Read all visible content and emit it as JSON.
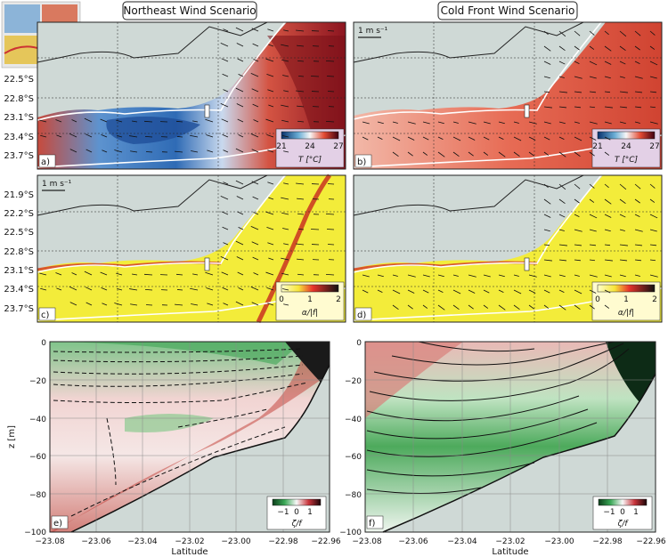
{
  "titles": {
    "left": "Northeast Wind Scenario",
    "right": "Cold Front Wind Scenario"
  },
  "map_panels": {
    "lat_ticks_top": [
      "22.5°S",
      "22.8°S",
      "23.1°S",
      "23.4°S",
      "23.7°S"
    ],
    "lat_ticks_mid": [
      "21.9°S",
      "22.2°S",
      "22.5°S",
      "22.8°S",
      "23.1°S",
      "23.4°S",
      "23.7°S"
    ],
    "scale_label": "1 m s⁻¹",
    "panels": [
      {
        "id": "a",
        "label": "a)",
        "field": "temperature",
        "colorbar": {
          "ticks": [
            "21",
            "24",
            "27"
          ],
          "label": "T [°C]"
        }
      },
      {
        "id": "b",
        "label": "b)",
        "field": "temperature",
        "colorbar": {
          "ticks": [
            "21",
            "24",
            "27"
          ],
          "label": "T [°C]"
        }
      },
      {
        "id": "c",
        "label": "c)",
        "field": "strain",
        "colorbar": {
          "ticks": [
            "0",
            "1",
            "2"
          ],
          "label": "α/|f|"
        }
      },
      {
        "id": "d",
        "label": "d)",
        "field": "strain",
        "colorbar": {
          "ticks": [
            "0",
            "1",
            "2"
          ],
          "label": "α/|f|"
        }
      }
    ]
  },
  "section_panels": {
    "xlabel": "Latitude",
    "ylabel": "z [m]",
    "x_ticks": [
      "−23.08",
      "−23.06",
      "−23.04",
      "−23.02",
      "−23.00",
      "−22.98",
      "−22.96"
    ],
    "y_ticks": [
      "0",
      "−20",
      "−40",
      "−60",
      "−80",
      "−100"
    ],
    "panels": [
      {
        "id": "e",
        "label": "e)",
        "colorbar": {
          "ticks": [
            "−1",
            "0",
            "1"
          ],
          "label": "ζ/f"
        }
      },
      {
        "id": "f",
        "label": "f)",
        "colorbar": {
          "ticks": [
            "−1",
            "0",
            "1"
          ],
          "label": "ζ/f"
        }
      }
    ]
  },
  "colors": {
    "land": "#cfd9d6",
    "ocean_warm": "#d84a3a",
    "ocean_cool": "#3a78c0",
    "strain_yellow": "#f3ec3a",
    "vort_green": "#2f9a45",
    "vort_red": "#b5262b",
    "cbar_temp_bg": "#e3d0e6"
  },
  "chart_data": [
    {
      "type": "heatmap",
      "title": "Northeast Wind Scenario",
      "panel": "a",
      "colorbar_label": "T [°C]",
      "colorbar_range": [
        21,
        27
      ]
    },
    {
      "type": "heatmap",
      "title": "Cold Front Wind Scenario",
      "panel": "b",
      "colorbar_label": "T [°C]",
      "colorbar_range": [
        21,
        27
      ]
    },
    {
      "type": "heatmap",
      "panel": "c",
      "colorbar_label": "α/|f|",
      "colorbar_range": [
        0,
        2
      ]
    },
    {
      "type": "heatmap",
      "panel": "d",
      "colorbar_label": "α/|f|",
      "colorbar_range": [
        0,
        2
      ]
    },
    {
      "type": "heatmap",
      "panel": "e",
      "xlabel": "Latitude",
      "ylabel": "z [m]",
      "xlim": [
        -23.08,
        -22.96
      ],
      "ylim": [
        -100,
        0
      ],
      "colorbar_label": "ζ/f",
      "colorbar_range": [
        -1,
        1
      ]
    },
    {
      "type": "heatmap",
      "panel": "f",
      "xlabel": "Latitude",
      "xlim": [
        -23.08,
        -22.96
      ],
      "ylim": [
        -100,
        0
      ],
      "colorbar_label": "ζ/f",
      "colorbar_range": [
        -1,
        1
      ]
    }
  ]
}
